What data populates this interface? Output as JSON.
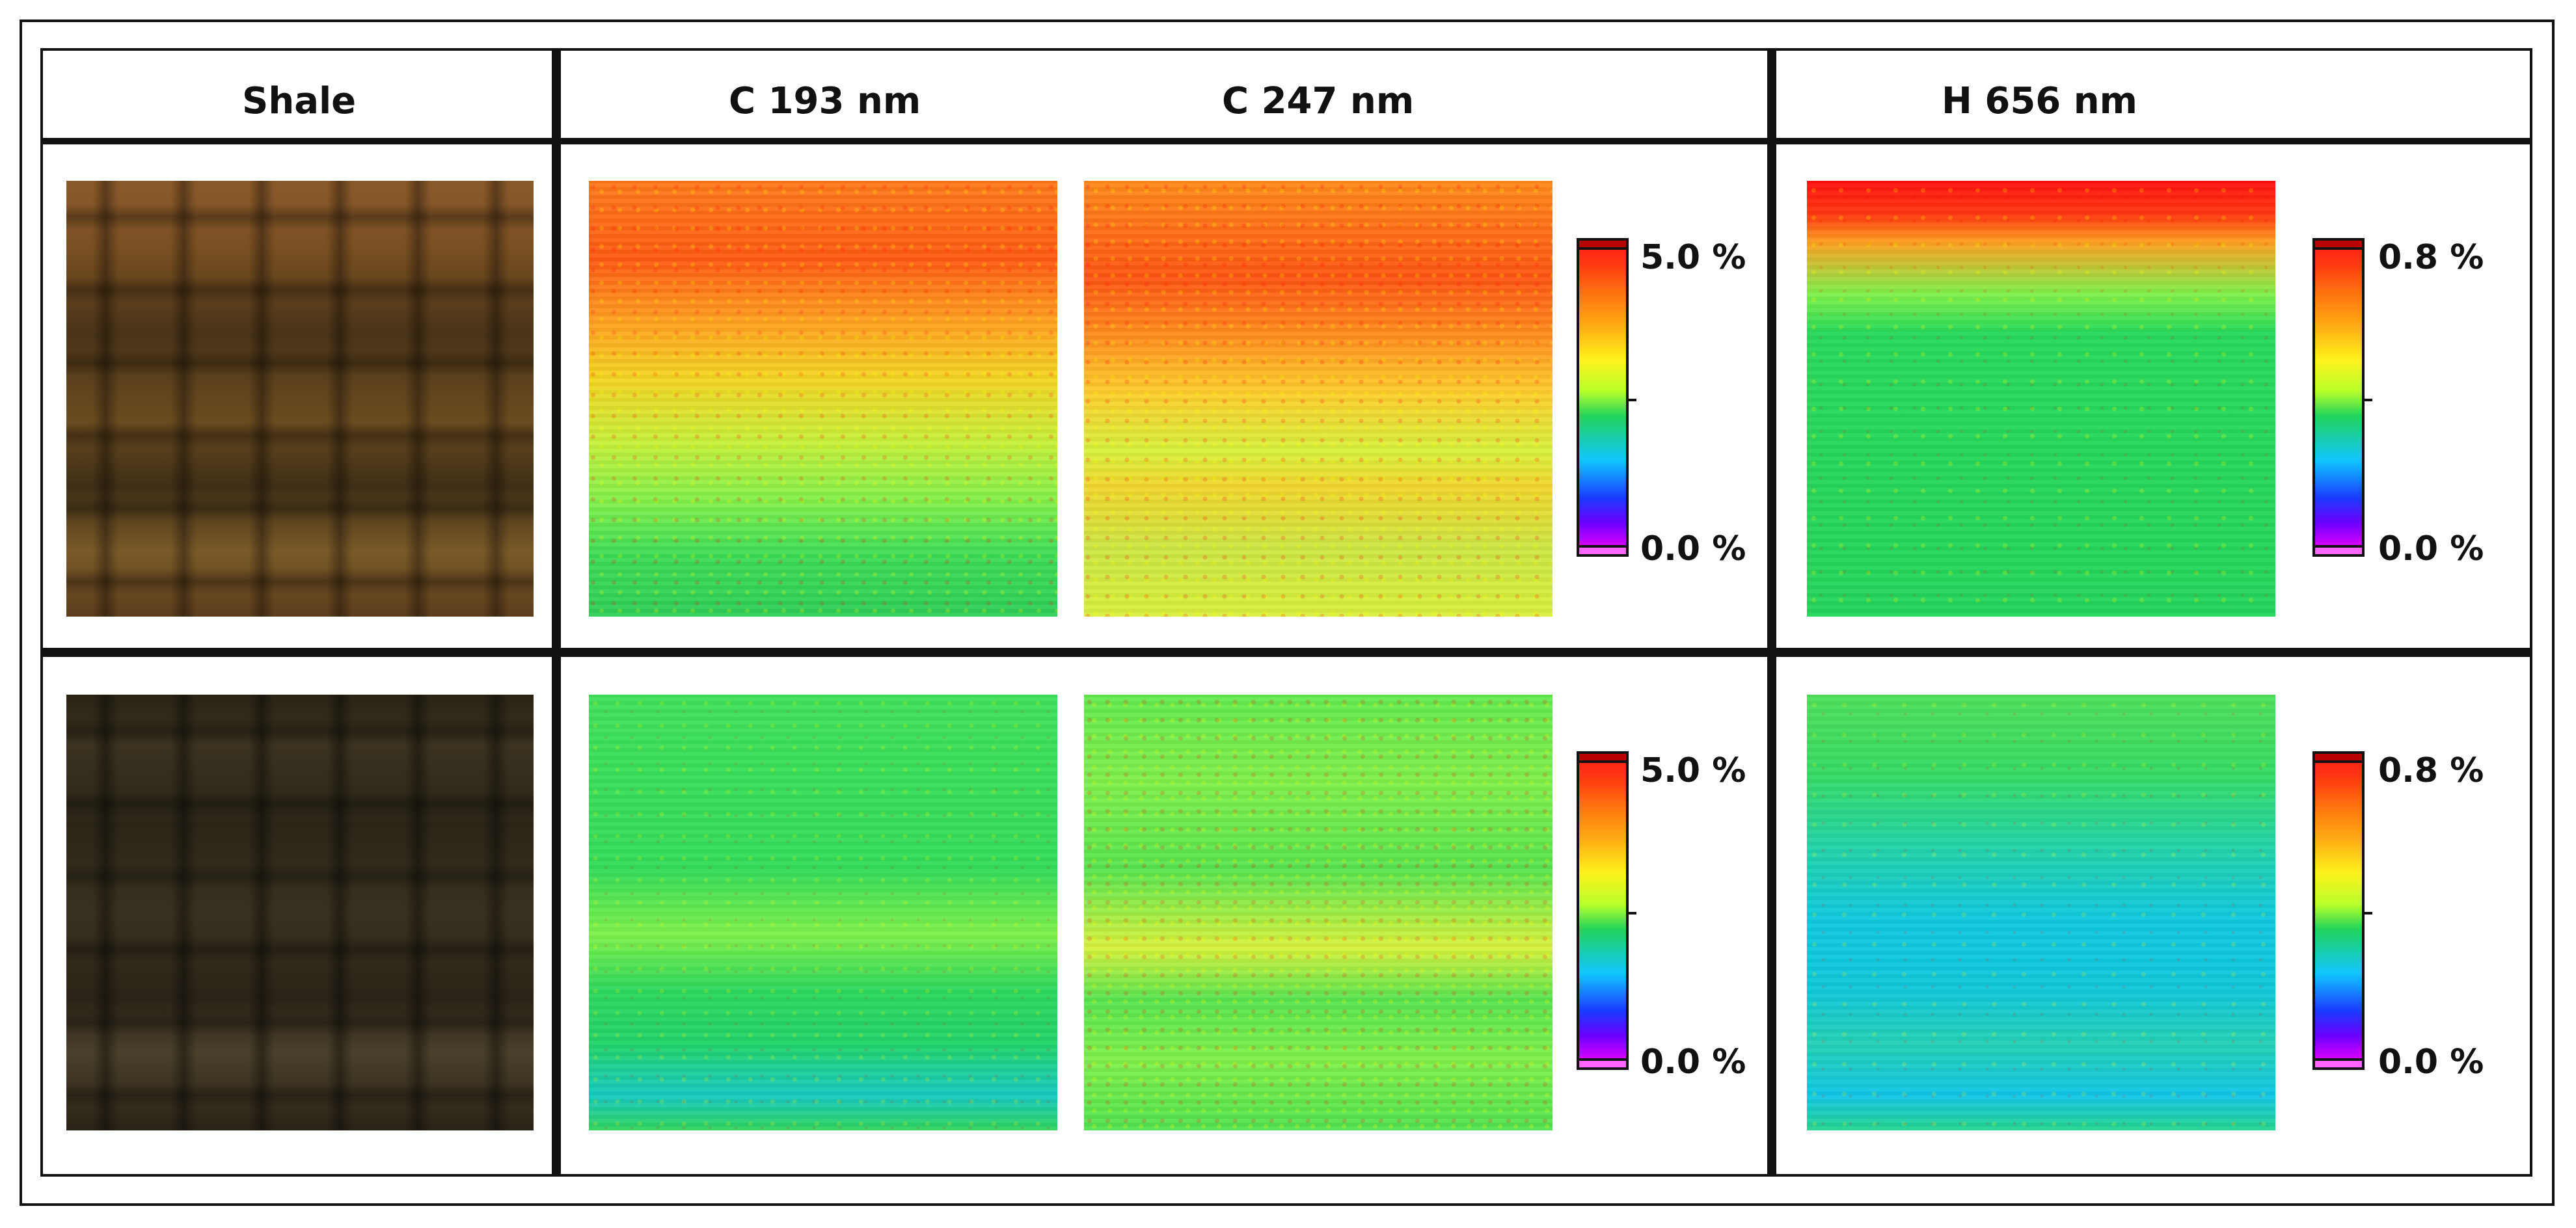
{
  "headers": {
    "shale": "Shale",
    "c193": "C 193 nm",
    "c247": "C 247 nm",
    "h656": "H 656 nm"
  },
  "rows": [
    {
      "carbon_scale": {
        "max_label": "5.0 %",
        "min_label": "0.0 %"
      },
      "hydrogen_scale": {
        "max_label": "0.8 %",
        "min_label": "0.0 %"
      }
    },
    {
      "carbon_scale": {
        "max_label": "5.0 %",
        "min_label": "0.0 %"
      },
      "hydrogen_scale": {
        "max_label": "0.8 %",
        "min_label": "0.0 %"
      }
    }
  ],
  "colors": {
    "frame": "#111111",
    "colormap": [
      "#ff1a1a",
      "#ff7a10",
      "#fff21b",
      "#22d45b",
      "#11c7ff",
      "#1a3bff",
      "#ff00ff"
    ]
  }
}
